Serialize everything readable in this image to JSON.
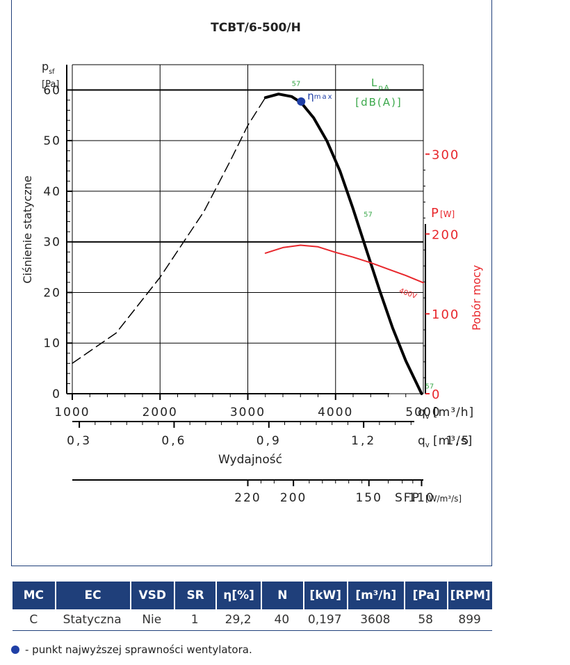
{
  "chart_data": {
    "type": "line",
    "title": "TCBT/6-500/H",
    "ylabel": "Ciśnienie statyczne",
    "yunit_sym": "p",
    "yunit_sub": "sf",
    "yunit": "[Pa]",
    "xlabel": "Wydajność",
    "x_unit_main": "q",
    "x_unit_sub": "v",
    "x_unit_h": "[m³/h]",
    "x_unit_s": "[m³/s]",
    "xlim": [
      1000,
      5000
    ],
    "ylim": [
      0,
      65
    ],
    "x_ticks": [
      1000,
      2000,
      3000,
      4000,
      5000
    ],
    "x_tick_labels": [
      "1000",
      "2000",
      "3000",
      "4000",
      "5000"
    ],
    "y_ticks": [
      0,
      10,
      20,
      30,
      40,
      50,
      60
    ],
    "y_tick_labels": [
      "0",
      "10",
      "20",
      "30",
      "40",
      "50",
      "60"
    ],
    "x2_ticks": [
      0.3,
      0.6,
      0.9,
      1.2,
      1.5
    ],
    "x2_tick_labels": [
      "0,3",
      "0,6",
      "0,9",
      "1,2",
      "1,5"
    ],
    "sfp_label": "SFP",
    "sfp_unit": "[W/m³/s]",
    "sfp_ticks": [
      {
        "x": 3000,
        "label": "220"
      },
      {
        "x": 3520,
        "label": "200"
      },
      {
        "x": 4380,
        "label": "150"
      },
      {
        "x": 4980,
        "label": "110"
      }
    ],
    "lpa_label": "L",
    "lpa_sub": "pA",
    "lpa_unit": "[dB(A)]",
    "power_axis_label": "Pobór mocy",
    "power_unit": "P",
    "power_unit2": "[W]",
    "power_ticks": [
      0,
      100,
      200,
      300
    ],
    "power_tick_labels": [
      "0",
      "100",
      "200",
      "300"
    ],
    "power_axis_max": 412,
    "series": [
      {
        "style": "dashed",
        "color": "#000000",
        "points": [
          [
            1000,
            6
          ],
          [
            1500,
            12
          ],
          [
            2000,
            23
          ],
          [
            2500,
            36
          ],
          [
            2800,
            46
          ],
          [
            3000,
            53
          ],
          [
            3200,
            58.5
          ]
        ]
      },
      {
        "style": "solid",
        "color": "#000000",
        "points": [
          [
            3200,
            58.5
          ],
          [
            3350,
            59.2
          ],
          [
            3500,
            58.7
          ],
          [
            3608,
            57.5
          ],
          [
            3750,
            54.5
          ],
          [
            3900,
            50
          ],
          [
            4050,
            44
          ],
          [
            4200,
            36.5
          ],
          [
            4350,
            28.5
          ],
          [
            4500,
            20.5
          ],
          [
            4650,
            13
          ],
          [
            4800,
            6.5
          ],
          [
            4980,
            0
          ]
        ]
      },
      {
        "style": "solid",
        "color": "#e8272c",
        "axis": "power",
        "points": [
          [
            3200,
            176
          ],
          [
            3400,
            183
          ],
          [
            3600,
            186
          ],
          [
            3800,
            184
          ],
          [
            4000,
            177
          ],
          [
            4200,
            171
          ],
          [
            4400,
            164
          ],
          [
            4600,
            156
          ],
          [
            4800,
            148
          ],
          [
            5000,
            139
          ]
        ]
      }
    ],
    "eta_point": {
      "x": 3608,
      "y": 58,
      "label": "η",
      "label_sub": "max"
    },
    "annotations": [
      {
        "x": 3500,
        "y": 60.8,
        "text": "57",
        "color": "#3aa84a"
      },
      {
        "x": 4320,
        "y": 35,
        "text": "57",
        "color": "#3aa84a"
      },
      {
        "x": 5020,
        "y": 1,
        "text": "57",
        "color": "#3aa84a"
      },
      {
        "x": 4720,
        "y": 20,
        "text": "400V",
        "color": "#e8272c",
        "rotate": 20
      }
    ]
  },
  "table": {
    "headers": [
      "MC",
      "EC",
      "VSD",
      "SR",
      "η[%]",
      "N",
      "[kW]",
      "[m³/h]",
      "[Pa]",
      "[RPM]"
    ],
    "row": [
      "C",
      "Statyczna",
      "Nie",
      "1",
      "29,2",
      "40",
      "0,197",
      "3608",
      "58",
      "899"
    ]
  },
  "legend": {
    "text": "- punkt najwyższej sprawności wentylatora."
  },
  "colors": {
    "frame": "#1f3f7a",
    "header_bg": "#1f3f7a",
    "lpa": "#3aa84a",
    "power": "#e8272c",
    "eta_dot": "#1f3fa6"
  }
}
